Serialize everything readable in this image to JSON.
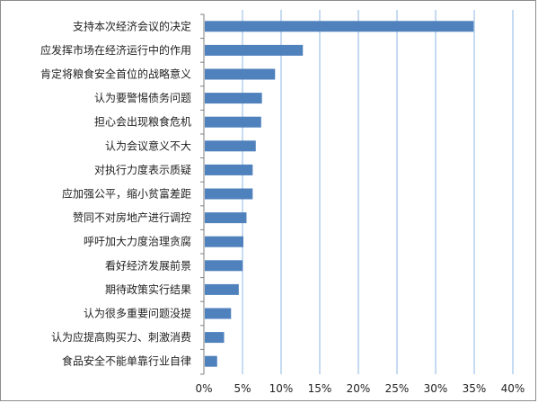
{
  "chart_data": {
    "type": "bar",
    "orientation": "horizontal",
    "categories": [
      "支持本次经济会议的决定",
      "应发挥市场在经济运行中的作用",
      "肯定将粮食安全首位的战略意义",
      "认为要警惕债务问题",
      "担心会出现粮食危机",
      "认为会议意义不大",
      "对执行力度表示质疑",
      "应加强公平，缩小贫富差距",
      "赞同不对房地产进行调控",
      "呼吁加大力度治理贪腐",
      "看好经济发展前景",
      "期待政策实行结果",
      "认为很多重要问题没提",
      "认为应提高购买力、刺激消费",
      "食品安全不能单靠行业自律"
    ],
    "values": [
      34.8,
      12.7,
      9.1,
      7.4,
      7.3,
      6.6,
      6.2,
      6.2,
      5.4,
      5.0,
      4.9,
      4.4,
      3.4,
      2.5,
      1.6
    ],
    "x_ticks": [
      "0%",
      "5%",
      "10%",
      "15%",
      "20%",
      "25%",
      "30%",
      "35%",
      "40%"
    ],
    "xlim": [
      0,
      40
    ],
    "grid": "vertical",
    "bar_color": "#4f81bd",
    "grid_color": "#8eb4e3",
    "axis_color": "#7f7f7f",
    "title": "",
    "xlabel": "",
    "ylabel": ""
  }
}
